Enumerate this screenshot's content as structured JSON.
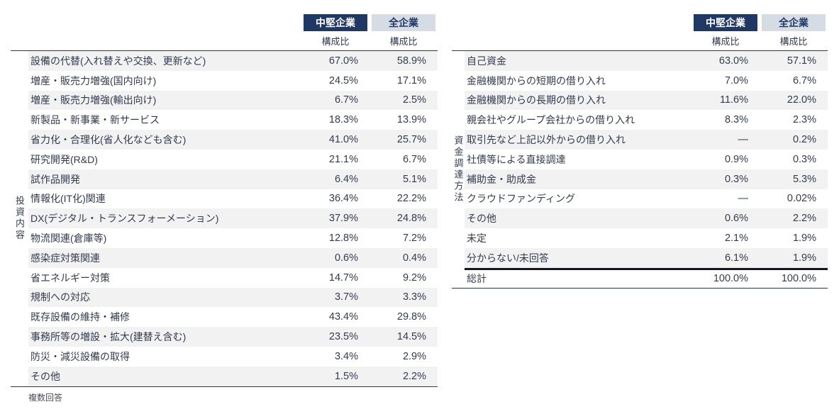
{
  "chart_data": [
    {
      "type": "table",
      "side_label": "投資内容",
      "col_headers": {
        "primary": "中堅企業",
        "secondary": "全企業",
        "sub": "構成比"
      },
      "rows": [
        {
          "label": "設備の代替(入れ替えや交換、更新など)",
          "mid": "67.0%",
          "all": "58.9%"
        },
        {
          "label": "増産・販売力増強(国内向け)",
          "mid": "24.5%",
          "all": "17.1%"
        },
        {
          "label": "増産・販売力増強(輸出向け)",
          "mid": "6.7%",
          "all": "2.5%"
        },
        {
          "label": "新製品・新事業・新サービス",
          "mid": "18.3%",
          "all": "13.9%"
        },
        {
          "label": "省力化・合理化(省人化なども含む)",
          "mid": "41.0%",
          "all": "25.7%"
        },
        {
          "label": "研究開発(R&D)",
          "mid": "21.1%",
          "all": "6.7%"
        },
        {
          "label": "試作品開発",
          "mid": "6.4%",
          "all": "5.1%"
        },
        {
          "label": "情報化(IT化)関連",
          "mid": "36.4%",
          "all": "22.2%"
        },
        {
          "label": "DX(デジタル・トランスフォーメーション)",
          "mid": "37.9%",
          "all": "24.8%"
        },
        {
          "label": "物流関連(倉庫等)",
          "mid": "12.8%",
          "all": "7.2%"
        },
        {
          "label": "感染症対策関連",
          "mid": "0.6%",
          "all": "0.4%"
        },
        {
          "label": "省エネルギー対策",
          "mid": "14.7%",
          "all": "9.2%"
        },
        {
          "label": "規制への対応",
          "mid": "3.7%",
          "all": "3.3%"
        },
        {
          "label": "既存設備の維持・補修",
          "mid": "43.4%",
          "all": "29.8%"
        },
        {
          "label": "事務所等の増設・拡大(建替え含む)",
          "mid": "23.5%",
          "all": "14.5%"
        },
        {
          "label": "防災・減災設備の取得",
          "mid": "3.4%",
          "all": "2.9%"
        },
        {
          "label": "その他",
          "mid": "1.5%",
          "all": "2.2%"
        }
      ],
      "footnote": "複数回答"
    },
    {
      "type": "table",
      "side_label": "資金調達方法",
      "col_headers": {
        "primary": "中堅企業",
        "secondary": "全企業",
        "sub": "構成比"
      },
      "rows": [
        {
          "label": "自己資金",
          "mid": "63.0%",
          "all": "57.1%"
        },
        {
          "label": "金融機関からの短期の借り入れ",
          "mid": "7.0%",
          "all": "6.7%"
        },
        {
          "label": "金融機関からの長期の借り入れ",
          "mid": "11.6%",
          "all": "22.0%"
        },
        {
          "label": "親会社やグループ会社からの借り入れ",
          "mid": "8.3%",
          "all": "2.3%"
        },
        {
          "label": "取引先など上記以外からの借り入れ",
          "mid": "―",
          "all": "0.2%"
        },
        {
          "label": "社債等による直接調達",
          "mid": "0.9%",
          "all": "0.3%"
        },
        {
          "label": "補助金・助成金",
          "mid": "0.3%",
          "all": "5.3%"
        },
        {
          "label": "クラウドファンディング",
          "mid": "―",
          "all": "0.02%"
        },
        {
          "label": "その他",
          "mid": "0.6%",
          "all": "2.2%"
        },
        {
          "label": "未定",
          "mid": "2.1%",
          "all": "1.9%"
        },
        {
          "label": "分からない/未回答",
          "mid": "6.1%",
          "all": "1.9%"
        }
      ],
      "total_row": {
        "label": "総計",
        "mid": "100.0%",
        "all": "100.0%"
      }
    }
  ],
  "colors": {
    "header_primary_bg": "#1f3864",
    "header_primary_text": "#ffffff",
    "header_secondary_bg": "#d6dce4",
    "header_secondary_text": "#1f3864",
    "row_alt_bg": "#f2f2f2",
    "rule": "#27365a",
    "total_rule": "#15151f",
    "text": "#333b4e"
  }
}
